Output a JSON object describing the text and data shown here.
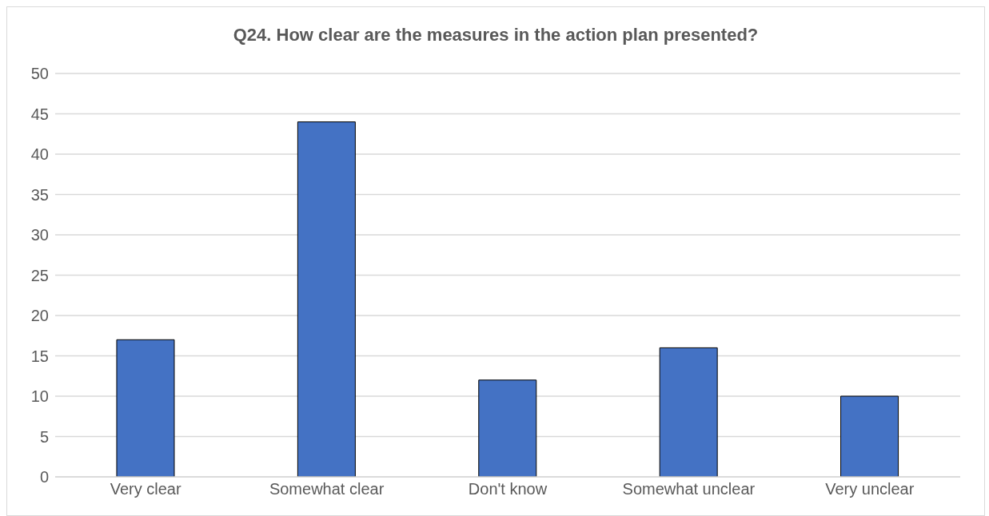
{
  "chart_data": {
    "type": "bar",
    "title": "Q24. How clear are the measures in the action plan presented?",
    "categories": [
      "Very clear",
      "Somewhat clear",
      "Don't know",
      "Somewhat unclear",
      "Very unclear"
    ],
    "values": [
      17,
      44,
      12,
      16,
      10
    ],
    "color": "#4472c4",
    "ylim": [
      0,
      50
    ],
    "yticks": [
      0,
      5,
      10,
      15,
      20,
      25,
      30,
      35,
      40,
      45,
      50
    ],
    "grid": "y",
    "legend": false
  }
}
